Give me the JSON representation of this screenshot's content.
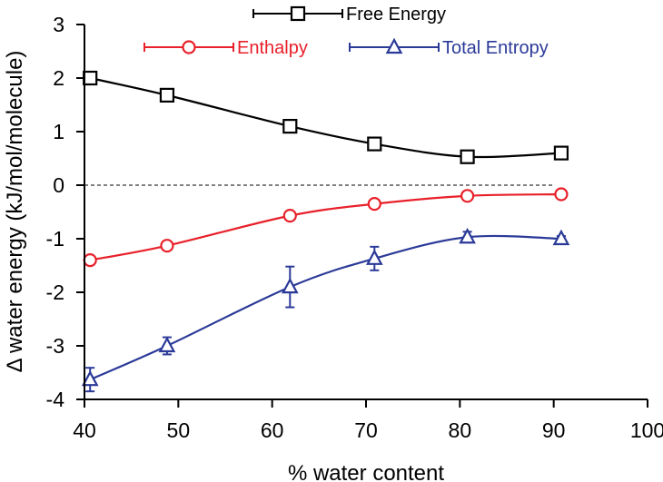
{
  "chart_data": {
    "type": "line",
    "title": "",
    "xlabel": "% water content",
    "ylabel": "Δ water energy (kJ/mol/molecule)",
    "xlim": [
      40,
      100
    ],
    "ylim": [
      -4,
      3
    ],
    "x_ticks": [
      40,
      50,
      60,
      70,
      80,
      90,
      100
    ],
    "y_ticks": [
      -4,
      -3,
      -2,
      -1,
      0,
      1,
      2,
      3
    ],
    "x_tick_labels": [
      "40",
      "50",
      "60",
      "70",
      "80",
      "90",
      "100"
    ],
    "y_tick_labels": [
      "-4",
      "-3",
      "-2",
      "-1",
      "0",
      "1",
      "2",
      "3"
    ],
    "reference_line": {
      "y": 0,
      "style": "dashed"
    },
    "legend_position": "top",
    "grid": false,
    "series": [
      {
        "name": "Free Energy",
        "color": "#000000",
        "marker": "square",
        "x": [
          40.6,
          48.8,
          61.9,
          70.9,
          80.8,
          90.8
        ],
        "y": [
          2.0,
          1.68,
          1.1,
          0.77,
          0.53,
          0.6
        ],
        "error": [
          0.04,
          0.05,
          0.07,
          0.07,
          0.05,
          0.05
        ]
      },
      {
        "name": "Enthalpy",
        "color": "#e8202a",
        "marker": "circle",
        "x": [
          40.6,
          48.8,
          61.9,
          70.9,
          80.8,
          90.8
        ],
        "y": [
          -1.4,
          -1.13,
          -0.57,
          -0.35,
          -0.2,
          -0.17
        ],
        "error": [
          0.03,
          0.03,
          0.03,
          0.03,
          0.03,
          0.03
        ]
      },
      {
        "name": "Total Entropy",
        "color": "#2b3a98",
        "marker": "triangle",
        "x": [
          40.6,
          48.8,
          61.9,
          70.9,
          80.8,
          90.8
        ],
        "y": [
          -3.63,
          -3.0,
          -1.9,
          -1.37,
          -0.97,
          -1.0
        ],
        "error": [
          0.22,
          0.16,
          0.38,
          0.22,
          0.1,
          0.05
        ]
      }
    ]
  }
}
